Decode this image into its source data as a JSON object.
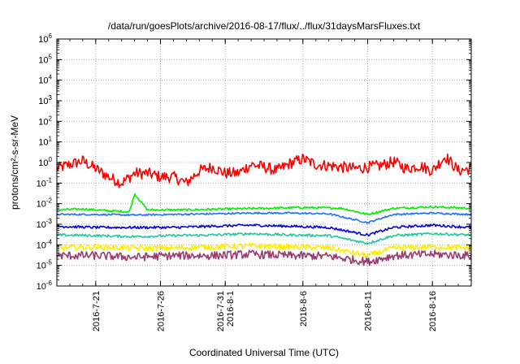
{
  "chart_data": {
    "type": "line",
    "title": "/data/run/goesPlots/archive/2016-08-17/flux/../flux/31daysMarsFluxes.txt",
    "xlabel": "Coordinated Universal Time (UTC)",
    "ylabel": "protons/cm²-s-sr-MeV",
    "yscale": "log",
    "ylim": [
      1e-06,
      1000000.0
    ],
    "xlim": [
      "2016-07-18",
      "2016-08-19"
    ],
    "grid": true,
    "legend": "none",
    "y_ticks": [
      {
        "value": 1e-06,
        "base": "10",
        "exp": "-6"
      },
      {
        "value": 1e-05,
        "base": "10",
        "exp": "-5"
      },
      {
        "value": 0.0001,
        "base": "10",
        "exp": "-4"
      },
      {
        "value": 0.001,
        "base": "10",
        "exp": "-3"
      },
      {
        "value": 0.01,
        "base": "10",
        "exp": "-2"
      },
      {
        "value": 0.1,
        "base": "10",
        "exp": "-1"
      },
      {
        "value": 1,
        "base": "10",
        "exp": "0"
      },
      {
        "value": 10.0,
        "base": "10",
        "exp": "1"
      },
      {
        "value": 100.0,
        "base": "10",
        "exp": "2"
      },
      {
        "value": 1000.0,
        "base": "10",
        "exp": "3"
      },
      {
        "value": 10000.0,
        "base": "10",
        "exp": "4"
      },
      {
        "value": 100000.0,
        "base": "10",
        "exp": "5"
      },
      {
        "value": 1000000.0,
        "base": "10",
        "exp": "6"
      }
    ],
    "x_ticks": [
      {
        "date": "2016-07-21",
        "label": [
          "2016-7-21"
        ]
      },
      {
        "date": "2016-07-26",
        "label": [
          "2016-7-26"
        ]
      },
      {
        "date": "2016-07-31",
        "label": [
          "2016-7-31",
          "2016-8-1"
        ]
      },
      {
        "date": "2016-08-06",
        "label": [
          "2016-8-6"
        ]
      },
      {
        "date": "2016-08-11",
        "label": [
          "2016-8-11"
        ]
      },
      {
        "date": "2016-08-16",
        "label": [
          "2016-8-16"
        ]
      }
    ],
    "series": [
      {
        "color": "#ff0000",
        "values": [
          {
            "x": "2016-07-18",
            "y": 0.5
          },
          {
            "x": "2016-07-19",
            "y": 0.8
          },
          {
            "x": "2016-07-20",
            "y": 1.2
          },
          {
            "x": "2016-07-21",
            "y": 0.5
          },
          {
            "x": "2016-07-22",
            "y": 0.2
          },
          {
            "x": "2016-07-23",
            "y": 0.1
          },
          {
            "x": "2016-07-24",
            "y": 0.3
          },
          {
            "x": "2016-07-25",
            "y": 0.3
          },
          {
            "x": "2016-07-26",
            "y": 0.2
          },
          {
            "x": "2016-07-27",
            "y": 0.2
          },
          {
            "x": "2016-07-28",
            "y": 0.1
          },
          {
            "x": "2016-07-29",
            "y": 0.4
          },
          {
            "x": "2016-07-30",
            "y": 0.6
          },
          {
            "x": "2016-07-31",
            "y": 0.3
          },
          {
            "x": "2016-08-01",
            "y": 0.3
          },
          {
            "x": "2016-08-02",
            "y": 0.8
          },
          {
            "x": "2016-08-03",
            "y": 0.6
          },
          {
            "x": "2016-08-04",
            "y": 0.4
          },
          {
            "x": "2016-08-05",
            "y": 0.9
          },
          {
            "x": "2016-08-06",
            "y": 1.5
          },
          {
            "x": "2016-08-07",
            "y": 0.8
          },
          {
            "x": "2016-08-08",
            "y": 0.7
          },
          {
            "x": "2016-08-09",
            "y": 0.6
          },
          {
            "x": "2016-08-10",
            "y": 0.5
          },
          {
            "x": "2016-08-11",
            "y": 0.6
          },
          {
            "x": "2016-08-12",
            "y": 0.7
          },
          {
            "x": "2016-08-13",
            "y": 1.1
          },
          {
            "x": "2016-08-14",
            "y": 0.5
          },
          {
            "x": "2016-08-15",
            "y": 0.7
          },
          {
            "x": "2016-08-16",
            "y": 0.4
          },
          {
            "x": "2016-08-17",
            "y": 2.0
          },
          {
            "x": "2016-08-18",
            "y": 0.4
          },
          {
            "x": "2016-08-19",
            "y": 0.5
          }
        ]
      },
      {
        "color": "#00ee00",
        "values": [
          {
            "x": "2016-07-18",
            "y": 0.005
          },
          {
            "x": "2016-07-20",
            "y": 0.0055
          },
          {
            "x": "2016-07-22",
            "y": 0.0045
          },
          {
            "x": "2016-07-23.6",
            "y": 0.004
          },
          {
            "x": "2016-07-24",
            "y": 0.03
          },
          {
            "x": "2016-07-25",
            "y": 0.005
          },
          {
            "x": "2016-07-28",
            "y": 0.005
          },
          {
            "x": "2016-07-31",
            "y": 0.0055
          },
          {
            "x": "2016-08-03",
            "y": 0.006
          },
          {
            "x": "2016-08-06",
            "y": 0.0065
          },
          {
            "x": "2016-08-09",
            "y": 0.006
          },
          {
            "x": "2016-08-11",
            "y": 0.003
          },
          {
            "x": "2016-08-13",
            "y": 0.006
          },
          {
            "x": "2016-08-16",
            "y": 0.007
          },
          {
            "x": "2016-08-19",
            "y": 0.006
          }
        ]
      },
      {
        "color": "#1e6fff",
        "values": [
          {
            "x": "2016-07-18",
            "y": 0.003
          },
          {
            "x": "2016-07-21",
            "y": 0.003
          },
          {
            "x": "2016-07-24",
            "y": 0.0028
          },
          {
            "x": "2016-07-27",
            "y": 0.003
          },
          {
            "x": "2016-07-30",
            "y": 0.0032
          },
          {
            "x": "2016-08-02",
            "y": 0.0035
          },
          {
            "x": "2016-08-05",
            "y": 0.0035
          },
          {
            "x": "2016-08-08",
            "y": 0.0032
          },
          {
            "x": "2016-08-11",
            "y": 0.0012
          },
          {
            "x": "2016-08-13",
            "y": 0.003
          },
          {
            "x": "2016-08-16",
            "y": 0.0035
          },
          {
            "x": "2016-08-19",
            "y": 0.003
          }
        ]
      },
      {
        "color": "#0000dd",
        "values": [
          {
            "x": "2016-07-18",
            "y": 0.0008
          },
          {
            "x": "2016-07-21",
            "y": 0.0007
          },
          {
            "x": "2016-07-24",
            "y": 0.0007
          },
          {
            "x": "2016-07-27",
            "y": 0.0007
          },
          {
            "x": "2016-07-30",
            "y": 0.0008
          },
          {
            "x": "2016-08-02",
            "y": 0.0009
          },
          {
            "x": "2016-08-05",
            "y": 0.0008
          },
          {
            "x": "2016-08-08",
            "y": 0.0007
          },
          {
            "x": "2016-08-11",
            "y": 0.0003
          },
          {
            "x": "2016-08-13",
            "y": 0.0007
          },
          {
            "x": "2016-08-16",
            "y": 0.0009
          },
          {
            "x": "2016-08-19",
            "y": 0.0007
          }
        ]
      },
      {
        "color": "#20c8a0",
        "values": [
          {
            "x": "2016-07-18",
            "y": 0.0003
          },
          {
            "x": "2016-07-21",
            "y": 0.00028
          },
          {
            "x": "2016-07-24",
            "y": 0.00025
          },
          {
            "x": "2016-07-27",
            "y": 0.00028
          },
          {
            "x": "2016-07-30",
            "y": 0.0003
          },
          {
            "x": "2016-08-02",
            "y": 0.00035
          },
          {
            "x": "2016-08-05",
            "y": 0.0003
          },
          {
            "x": "2016-08-08",
            "y": 0.00028
          },
          {
            "x": "2016-08-11",
            "y": 0.00012
          },
          {
            "x": "2016-08-13",
            "y": 0.00028
          },
          {
            "x": "2016-08-16",
            "y": 0.00035
          },
          {
            "x": "2016-08-19",
            "y": 0.0003
          }
        ]
      },
      {
        "color": "#ffee00",
        "values": [
          {
            "x": "2016-07-18",
            "y": 7e-05
          },
          {
            "x": "2016-07-21",
            "y": 8e-05
          },
          {
            "x": "2016-07-24",
            "y": 7e-05
          },
          {
            "x": "2016-07-27",
            "y": 7e-05
          },
          {
            "x": "2016-07-30",
            "y": 8e-05
          },
          {
            "x": "2016-08-02",
            "y": 9e-05
          },
          {
            "x": "2016-08-05",
            "y": 8e-05
          },
          {
            "x": "2016-08-08",
            "y": 7e-05
          },
          {
            "x": "2016-08-11",
            "y": 3e-05
          },
          {
            "x": "2016-08-13",
            "y": 7e-05
          },
          {
            "x": "2016-08-16",
            "y": 8e-05
          },
          {
            "x": "2016-08-19",
            "y": 7e-05
          }
        ]
      },
      {
        "color": "#9c3a6e",
        "values": [
          {
            "x": "2016-07-18",
            "y": 3e-05
          },
          {
            "x": "2016-07-21",
            "y": 3e-05
          },
          {
            "x": "2016-07-24",
            "y": 2.5e-05
          },
          {
            "x": "2016-07-27",
            "y": 3e-05
          },
          {
            "x": "2016-07-30",
            "y": 3e-05
          },
          {
            "x": "2016-08-02",
            "y": 3.5e-05
          },
          {
            "x": "2016-08-05",
            "y": 3e-05
          },
          {
            "x": "2016-08-08",
            "y": 2.8e-05
          },
          {
            "x": "2016-08-11",
            "y": 1.5e-05
          },
          {
            "x": "2016-08-13",
            "y": 3e-05
          },
          {
            "x": "2016-08-16",
            "y": 3.5e-05
          },
          {
            "x": "2016-08-19",
            "y": 3e-05
          }
        ]
      }
    ]
  }
}
